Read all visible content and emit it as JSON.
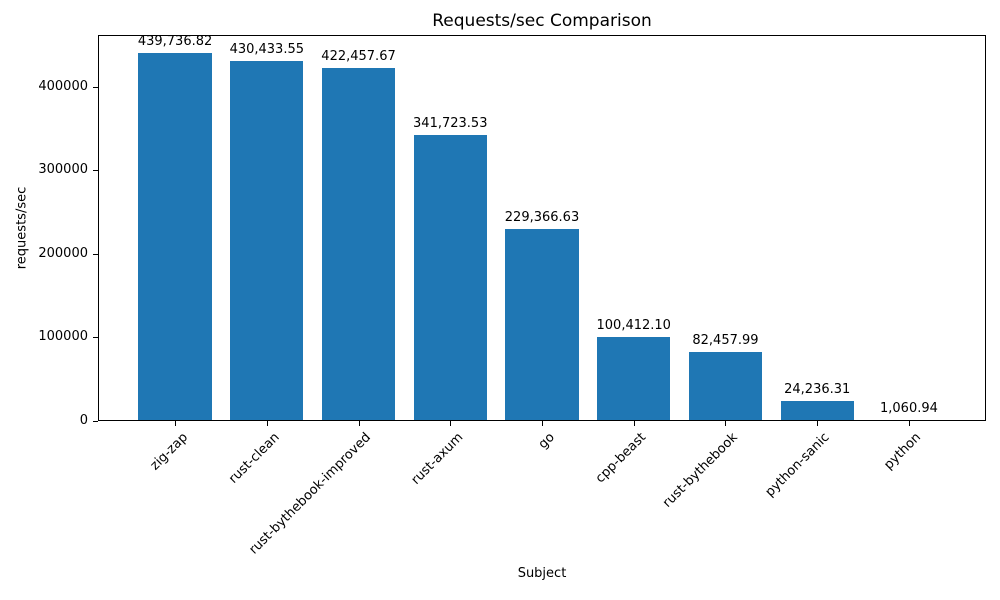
{
  "chart_data": {
    "type": "bar",
    "title": "Requests/sec Comparison",
    "xlabel": "Subject",
    "ylabel": "requests/sec",
    "categories": [
      "zig-zap",
      "rust-clean",
      "rust-bythebook-improved",
      "rust-axum",
      "go",
      "cpp-beast",
      "rust-bythebook",
      "python-sanic",
      "python"
    ],
    "values": [
      439736.82,
      430433.55,
      422457.67,
      341723.53,
      229366.63,
      100412.1,
      82457.99,
      24236.31,
      1060.94
    ],
    "value_labels": [
      "439,736.82",
      "430,433.55",
      "422,457.67",
      "341,723.53",
      "229,366.63",
      "100,412.10",
      "82,457.99",
      "24,236.31",
      "1,060.94"
    ],
    "ytick_values": [
      0,
      100000,
      200000,
      300000,
      400000
    ],
    "ytick_labels": [
      "0",
      "100000",
      "200000",
      "300000",
      "400000"
    ],
    "ylim": [
      0,
      461723.66
    ],
    "bar_color": "#1f77b4",
    "grid": false,
    "legend_position": "none",
    "xtick_rotation": 45
  }
}
